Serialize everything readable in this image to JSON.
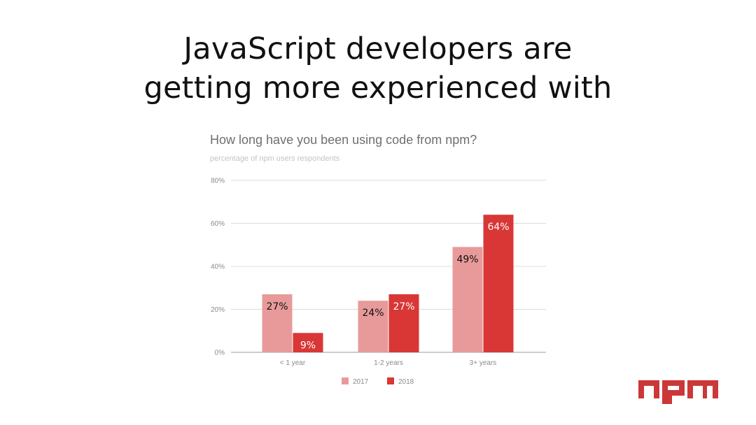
{
  "headline": {
    "line1": "JavaScript developers are",
    "line2": "getting more experienced with"
  },
  "chart_data": {
    "type": "bar",
    "title": "How long have you been using code from npm?",
    "subtitle": "percentage of npm users respondents",
    "categories": [
      "< 1 year",
      "1-2 years",
      "3+ years"
    ],
    "series": [
      {
        "name": "2017",
        "values": [
          27,
          24,
          49
        ],
        "color": "#e89a9a",
        "label_color": "#111111"
      },
      {
        "name": "2018",
        "values": [
          9,
          27,
          64
        ],
        "color": "#d93636",
        "label_color": "#ffffff"
      }
    ],
    "ylim": [
      0,
      80
    ],
    "yticks": [
      0,
      20,
      40,
      60,
      80
    ],
    "ytick_labels": [
      "0%",
      "20%",
      "40%",
      "60%",
      "80%"
    ],
    "data_labels": [
      [
        "27%",
        "24%",
        "49%"
      ],
      [
        "9%",
        "27%",
        "64%"
      ]
    ],
    "grid": true,
    "legend": "bottom"
  },
  "logo": {
    "text": "npm",
    "color": "#cb3837"
  }
}
